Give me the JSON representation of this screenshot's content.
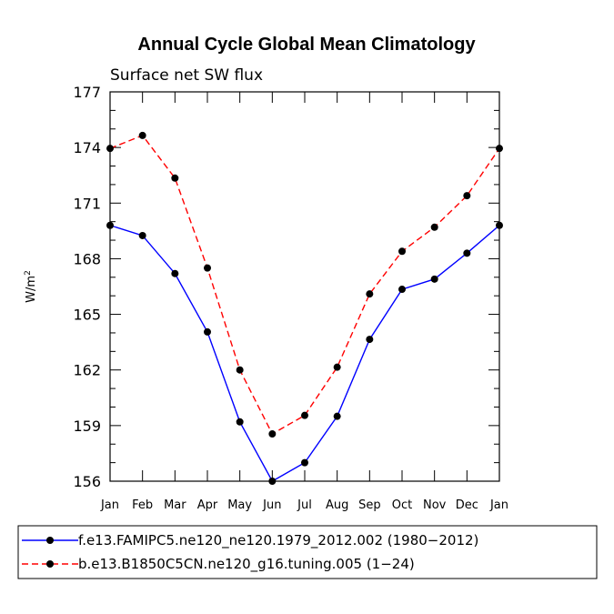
{
  "chart_data": {
    "type": "line",
    "title": "Annual Cycle Global Mean Climatology",
    "subtitle": "Surface net SW flux",
    "ylabel_base": "W/m",
    "ylabel_sup": "2",
    "ylim": [
      156,
      177
    ],
    "yticks": [
      156,
      159,
      162,
      165,
      168,
      171,
      174,
      177
    ],
    "categories": [
      "Jan",
      "Feb",
      "Mar",
      "Apr",
      "May",
      "Jun",
      "Jul",
      "Aug",
      "Sep",
      "Oct",
      "Nov",
      "Dec",
      "Jan"
    ],
    "series": [
      {
        "name": "f.e13.FAMIPC5.ne120_ne120.1979_2012.002 (1980−2012)",
        "color": "#0000ff",
        "dash": "solid",
        "values": [
          169.8,
          169.25,
          167.2,
          164.05,
          159.2,
          156.0,
          157.0,
          159.5,
          163.65,
          166.35,
          166.9,
          168.3,
          169.8
        ]
      },
      {
        "name": "b.e13.B1850C5CN.ne120_g16.tuning.005 (1−24)",
        "color": "#ff0000",
        "dash": "dashed",
        "values": [
          173.95,
          174.65,
          172.35,
          167.5,
          162.0,
          158.55,
          159.55,
          162.15,
          166.1,
          168.4,
          169.7,
          171.4,
          173.95
        ]
      }
    ]
  }
}
